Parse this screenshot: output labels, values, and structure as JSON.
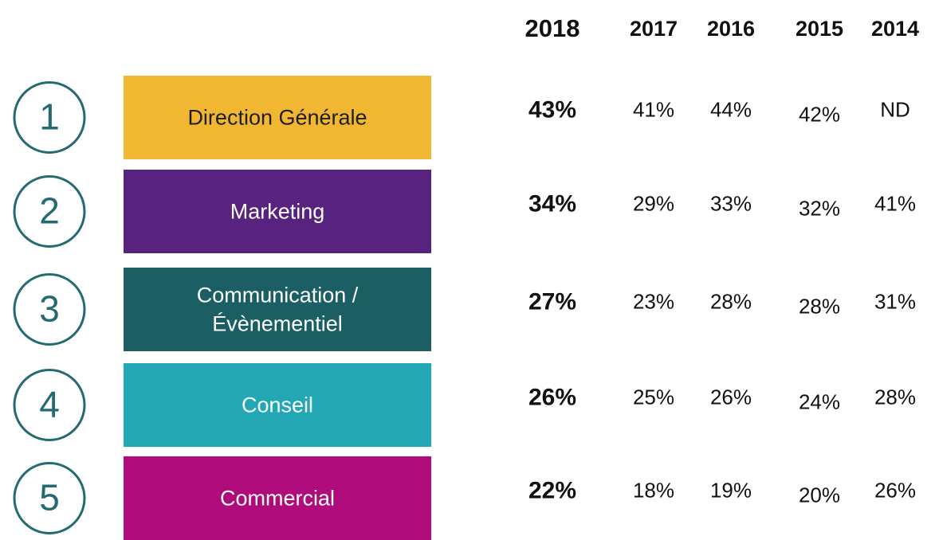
{
  "table": {
    "columns": [
      "2018",
      "2017",
      "2016",
      "2015",
      "2014"
    ],
    "rows": [
      {
        "rank": "1",
        "label": [
          "Direction Générale"
        ],
        "color": "#f2b732",
        "text_color": "#1e1e1e",
        "cells": [
          "43%",
          "41%",
          "44%",
          "42%",
          "ND"
        ]
      },
      {
        "rank": "2",
        "label": [
          "Marketing"
        ],
        "color": "#58237f",
        "text_color": "#ffffff",
        "cells": [
          "34%",
          "29%",
          "33%",
          "32%",
          "41%"
        ]
      },
      {
        "rank": "3",
        "label": [
          "Communication /",
          "Évènementiel"
        ],
        "color": "#1b5e63",
        "text_color": "#ffffff",
        "cells": [
          "27%",
          "23%",
          "28%",
          "28%",
          "31%"
        ]
      },
      {
        "rank": "4",
        "label": [
          "Conseil"
        ],
        "color": "#22a8b5",
        "text_color": "#ffffff",
        "cells": [
          "26%",
          "25%",
          "26%",
          "24%",
          "28%"
        ]
      },
      {
        "rank": "5",
        "label": [
          "Commercial"
        ],
        "color": "#b00b7a",
        "text_color": "#ffffff",
        "cells": [
          "22%",
          "18%",
          "19%",
          "20%",
          "26%"
        ]
      }
    ]
  }
}
